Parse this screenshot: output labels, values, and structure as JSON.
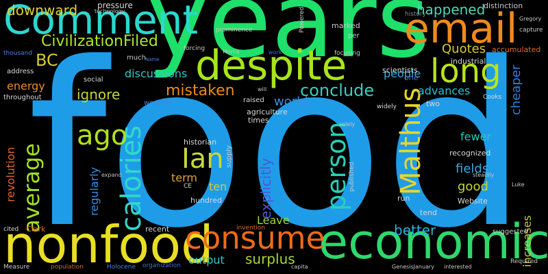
{
  "words": [
    {
      "text": "food",
      "color": "#1f9ce8"
    },
    {
      "text": "years",
      "color": "#1ee06a"
    },
    {
      "text": "Comment",
      "color": "#2ad8d0"
    },
    {
      "text": "email",
      "color": "#ef8a1e"
    },
    {
      "text": "despite",
      "color": "#a8e41c"
    },
    {
      "text": "nonfood",
      "color": "#e8de24"
    },
    {
      "text": "economic",
      "color": "#2ed86c"
    },
    {
      "text": "consume",
      "color": "#f06a18"
    },
    {
      "text": "long",
      "color": "#b8e41a"
    },
    {
      "text": "Malthus",
      "color": "#e6d62a"
    },
    {
      "text": "calories",
      "color": "#30d8c8"
    },
    {
      "text": "ago",
      "color": "#b2e01e"
    },
    {
      "text": "average",
      "color": "#a2e02a"
    },
    {
      "text": "person",
      "color": "#28d0b8"
    },
    {
      "text": "Ian",
      "color": "#c6d83a"
    },
    {
      "text": "CivilizationFiled",
      "color": "#aee828"
    },
    {
      "text": "downward",
      "color": "#e2d038"
    },
    {
      "text": "BC",
      "color": "#d8cc30"
    },
    {
      "text": "mistaken",
      "color": "#ef8a1e"
    },
    {
      "text": "conclude",
      "color": "#36d0c0"
    },
    {
      "text": "happened",
      "color": "#4ad8b8"
    },
    {
      "text": "Quotes",
      "color": "#d8cc30"
    },
    {
      "text": "people",
      "color": "#36a8e4"
    },
    {
      "text": "advances",
      "color": "#2ac6cc"
    },
    {
      "text": "discussions",
      "color": "#36c8c8"
    },
    {
      "text": "ignore",
      "color": "#c8d43c"
    },
    {
      "text": "energy",
      "color": "#e88a30"
    },
    {
      "text": "world",
      "color": "#3a8ee0"
    },
    {
      "text": "better",
      "color": "#2eb0e0"
    },
    {
      "text": "surplus",
      "color": "#a8d838"
    },
    {
      "text": "output",
      "color": "#36c8c8"
    },
    {
      "text": "Leave",
      "color": "#9ad83a"
    },
    {
      "text": "fields",
      "color": "#3aa8e8"
    },
    {
      "text": "good",
      "color": "#c8d830"
    },
    {
      "text": "fewer",
      "color": "#2ec8b8"
    },
    {
      "text": "term",
      "color": "#e0a040"
    },
    {
      "text": "ten",
      "color": "#d8c840"
    },
    {
      "text": "explicitly",
      "color": "#4a5ad8"
    },
    {
      "text": "cheaper",
      "color": "#2a80e0"
    },
    {
      "text": "increases",
      "color": "#c8c840"
    },
    {
      "text": "regularly",
      "color": "#3a8ee0"
    },
    {
      "text": "revolution",
      "color": "#e0662a"
    },
    {
      "text": "pressure",
      "color": "#d8d8d8"
    },
    {
      "text": "technology",
      "color": "#c8c8c8"
    },
    {
      "text": "distinction",
      "color": "#c8c8c8"
    },
    {
      "text": "history",
      "color": "#8a8a8a"
    },
    {
      "text": "Gregory",
      "color": "#c8c8c8"
    },
    {
      "text": "capture",
      "color": "#c8c8c8"
    },
    {
      "text": "thousand",
      "color": "#4a80d8"
    },
    {
      "text": "much",
      "color": "#c8c8c8"
    },
    {
      "text": "Name",
      "color": "#4a80d8"
    },
    {
      "text": "forcing",
      "color": "#c8c8c8"
    },
    {
      "text": "Morris",
      "color": "#c8c8c8"
    },
    {
      "text": "work",
      "color": "#4a6ad8"
    },
    {
      "text": "focusing",
      "color": "#c8c8c8"
    },
    {
      "text": "marked",
      "color": "#c8c8c8"
    },
    {
      "text": "per",
      "color": "#c8c8c8"
    },
    {
      "text": "prominence",
      "color": "#c8c8c8"
    },
    {
      "text": "Powered",
      "color": "#c8c8c8"
    },
    {
      "text": "industrial",
      "color": "#d8d8d8"
    },
    {
      "text": "accumulated",
      "color": "#e06a2a"
    },
    {
      "text": "address",
      "color": "#d8d8d8"
    },
    {
      "text": "social",
      "color": "#d8d8d8"
    },
    {
      "text": "weather",
      "color": "#4a80d8"
    },
    {
      "text": "throughout",
      "color": "#d8d8d8"
    },
    {
      "text": "raised",
      "color": "#d8d8d8"
    },
    {
      "text": "agriculture",
      "color": "#d8d8d8"
    },
    {
      "text": "times",
      "color": "#d8d8d8"
    },
    {
      "text": "will",
      "color": "#c8c8c8"
    },
    {
      "text": "scientists",
      "color": "#d8d8d8"
    },
    {
      "text": "one",
      "color": "#4a6ad8"
    },
    {
      "text": "two",
      "color": "#d8d8d8"
    },
    {
      "text": "Cooks",
      "color": "#d8d8d8"
    },
    {
      "text": "widely",
      "color": "#d8d8d8"
    },
    {
      "text": "solely",
      "color": "#c8c8c8"
    },
    {
      "text": "historian",
      "color": "#d8d8d8"
    },
    {
      "text": "supply",
      "color": "#c8c8c8"
    },
    {
      "text": "expand",
      "color": "#c8c8c8"
    },
    {
      "text": "CE",
      "color": "#d8d8d8"
    },
    {
      "text": "hundred",
      "color": "#d8d8d8"
    },
    {
      "text": "published",
      "color": "#c8c8c8"
    },
    {
      "text": "recognized",
      "color": "#d8d8d8"
    },
    {
      "text": "steadily",
      "color": "#c8c8c8"
    },
    {
      "text": "Luke",
      "color": "#c8c8c8"
    },
    {
      "text": "run",
      "color": "#d8d8d8"
    },
    {
      "text": "tend",
      "color": "#d8d8d8"
    },
    {
      "text": "Website",
      "color": "#d8d8d8"
    },
    {
      "text": "cited",
      "color": "#d8d8d8"
    },
    {
      "text": "Clark",
      "color": "#e06a2a"
    },
    {
      "text": "recent",
      "color": "#d8d8d8"
    },
    {
      "text": "invention",
      "color": "#e06a2a"
    },
    {
      "text": "suggested",
      "color": "#c8c8c8"
    },
    {
      "text": "Measure",
      "color": "#c8c8c8"
    },
    {
      "text": "population",
      "color": "#d06a2a"
    },
    {
      "text": "Holocene",
      "color": "#4a80d8"
    },
    {
      "text": "organization",
      "color": "#4a6ad8"
    },
    {
      "text": "capita",
      "color": "#c8c8c8"
    },
    {
      "text": "GenesisJanuary",
      "color": "#c8c8c8"
    },
    {
      "text": "interested",
      "color": "#c8c8c8"
    },
    {
      "text": "Required",
      "color": "#c8c8c8"
    }
  ]
}
